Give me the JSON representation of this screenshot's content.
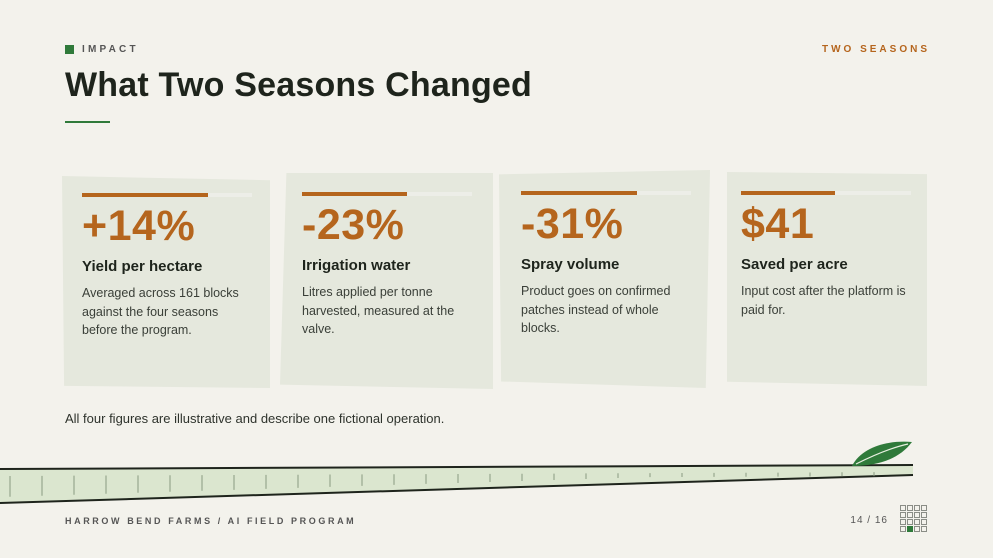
{
  "header": {
    "eyebrow": "IMPACT",
    "top_right": "TWO SEASONS",
    "title": "What Two Seasons Changed"
  },
  "colors": {
    "accent": "#b5651d",
    "brand_green": "#2f7a3a",
    "card_bg": "#e5e8dd",
    "page_bg": "#f3f2ec"
  },
  "cards": [
    {
      "value": "+14%",
      "label": "Yield per hectare",
      "desc": "Averaged across 161 blocks against the four seasons before the program.",
      "bar_fill": 0.74
    },
    {
      "value": "-23%",
      "label": "Irrigation water",
      "desc": "Litres applied per tonne harvested, measured at the valve.",
      "bar_fill": 0.62
    },
    {
      "value": "-31%",
      "label": "Spray volume",
      "desc": "Product goes on confirmed patches instead of whole blocks.",
      "bar_fill": 0.68
    },
    {
      "value": "$41",
      "label": "Saved per acre",
      "desc": "Input cost after the platform is paid for.",
      "bar_fill": 0.55
    }
  ],
  "note": "All four figures are illustrative and describe one fictional operation.",
  "footer": {
    "left": "HARROW BEND FARMS / AI FIELD PROGRAM",
    "page": "14 / 16",
    "current_page": 14,
    "total_pages": 16
  },
  "icons": {
    "decoration": "leaf-icon",
    "nav": "page-grid-icon"
  }
}
